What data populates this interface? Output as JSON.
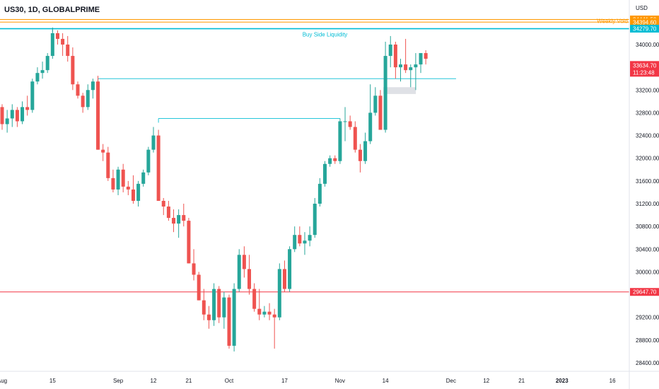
{
  "header": {
    "symbol": "US30, 1D, GLOBALPRIME"
  },
  "chart_data": {
    "type": "candlestick",
    "currency": "USD",
    "colors": {
      "up": "#26a69a",
      "down": "#ef5350",
      "background": "#ffffff",
      "axis_text": "#131722"
    },
    "y_axis": {
      "ylim": [
        28200,
        34800
      ],
      "ticks": [
        {
          "value": 34000,
          "label": "34000.00"
        },
        {
          "value": 33200,
          "label": "33200.00"
        },
        {
          "value": 32800,
          "label": "32800.00"
        },
        {
          "value": 32400,
          "label": "32400.00"
        },
        {
          "value": 32000,
          "label": "32000.00"
        },
        {
          "value": 31600,
          "label": "31600.00"
        },
        {
          "value": 31200,
          "label": "31200.00"
        },
        {
          "value": 30800,
          "label": "30800.00"
        },
        {
          "value": 30400,
          "label": "30400.00"
        },
        {
          "value": 30000,
          "label": "30000.00"
        },
        {
          "value": 29200,
          "label": "29200.00"
        },
        {
          "value": 28800,
          "label": "28800.00"
        },
        {
          "value": 28400,
          "label": "28400.00"
        }
      ]
    },
    "x_axis": {
      "ticks": [
        {
          "bar": 0,
          "label": "Aug"
        },
        {
          "bar": 10,
          "label": "15"
        },
        {
          "bar": 23,
          "label": "Sep"
        },
        {
          "bar": 30,
          "label": "12"
        },
        {
          "bar": 37,
          "label": "21"
        },
        {
          "bar": 45,
          "label": "Oct"
        },
        {
          "bar": 56,
          "label": "17"
        },
        {
          "bar": 67,
          "label": "Nov"
        },
        {
          "bar": 76,
          "label": "14"
        },
        {
          "bar": 89,
          "label": "Dec"
        },
        {
          "bar": 96,
          "label": "12"
        },
        {
          "bar": 103,
          "label": "21"
        },
        {
          "bar": 111,
          "label": "2023"
        },
        {
          "bar": 121,
          "label": "16"
        }
      ]
    },
    "candles": [
      [
        32900,
        32950,
        32500,
        32600
      ],
      [
        32600,
        32850,
        32450,
        32700
      ],
      [
        32700,
        32950,
        32550,
        32850
      ],
      [
        32850,
        32900,
        32550,
        32650
      ],
      [
        32650,
        33000,
        32600,
        32900
      ],
      [
        32900,
        33100,
        32750,
        32850
      ],
      [
        32850,
        33400,
        32800,
        33350
      ],
      [
        33350,
        33600,
        33300,
        33500
      ],
      [
        33500,
        33700,
        33400,
        33550
      ],
      [
        33550,
        33850,
        33500,
        33800
      ],
      [
        33800,
        34300,
        33750,
        34200
      ],
      [
        34200,
        34250,
        34000,
        34100
      ],
      [
        34100,
        34200,
        33800,
        34000
      ],
      [
        34000,
        34150,
        33700,
        33800
      ],
      [
        33800,
        33950,
        33200,
        33300
      ],
      [
        33300,
        33350,
        33050,
        33100
      ],
      [
        33100,
        33150,
        32800,
        32900
      ],
      [
        32900,
        33300,
        32850,
        33200
      ],
      [
        33200,
        33400,
        33050,
        33350
      ],
      [
        33350,
        33450,
        32150,
        32150
      ],
      [
        32150,
        32250,
        31950,
        32100
      ],
      [
        32100,
        32200,
        31600,
        31650
      ],
      [
        31650,
        31800,
        31400,
        31450
      ],
      [
        31450,
        31850,
        31350,
        31800
      ],
      [
        31800,
        31900,
        31400,
        31500
      ],
      [
        31500,
        31600,
        31350,
        31450
      ],
      [
        31450,
        31700,
        31200,
        31250
      ],
      [
        31250,
        31600,
        31150,
        31550
      ],
      [
        31550,
        31800,
        31500,
        31750
      ],
      [
        31750,
        32200,
        31700,
        32150
      ],
      [
        32150,
        32550,
        32100,
        32400
      ],
      [
        32400,
        32500,
        31250,
        31250
      ],
      [
        31250,
        31300,
        31000,
        31150
      ],
      [
        31150,
        31250,
        30900,
        30950
      ],
      [
        30950,
        31100,
        30700,
        30850
      ],
      [
        30850,
        31100,
        30600,
        31000
      ],
      [
        31000,
        31200,
        30800,
        30900
      ],
      [
        30900,
        30950,
        30150,
        30150
      ],
      [
        30150,
        30400,
        29850,
        29950
      ],
      [
        29950,
        30000,
        29500,
        29500
      ],
      [
        29500,
        29700,
        29150,
        29250
      ],
      [
        29250,
        29400,
        29000,
        29150
      ],
      [
        29150,
        29800,
        29050,
        29700
      ],
      [
        29700,
        29750,
        29100,
        29200
      ],
      [
        29200,
        29650,
        29000,
        29550
      ],
      [
        29550,
        29600,
        28650,
        28700
      ],
      [
        28700,
        29800,
        28600,
        29700
      ],
      [
        29700,
        30400,
        29650,
        30300
      ],
      [
        30300,
        30450,
        29900,
        30050
      ],
      [
        30050,
        30300,
        29600,
        29700
      ],
      [
        29700,
        29800,
        29300,
        29350
      ],
      [
        29350,
        29700,
        29150,
        29250
      ],
      [
        29250,
        29400,
        29200,
        29300
      ],
      [
        29300,
        29450,
        29150,
        29250
      ],
      [
        29250,
        29350,
        28650,
        29200
      ],
      [
        29200,
        30150,
        29150,
        30050
      ],
      [
        30050,
        30200,
        29650,
        29700
      ],
      [
        29700,
        30450,
        29650,
        30400
      ],
      [
        30400,
        30800,
        30350,
        30650
      ],
      [
        30650,
        30800,
        30450,
        30500
      ],
      [
        30500,
        30700,
        30300,
        30550
      ],
      [
        30550,
        30800,
        30450,
        30650
      ],
      [
        30650,
        31300,
        30600,
        31200
      ],
      [
        31200,
        31650,
        31150,
        31550
      ],
      [
        31550,
        31950,
        31500,
        31900
      ],
      [
        31900,
        32050,
        31850,
        32000
      ],
      [
        32000,
        32050,
        31900,
        31950
      ],
      [
        31950,
        32700,
        31900,
        32650
      ],
      [
        32650,
        32900,
        32300,
        32650
      ],
      [
        32650,
        32750,
        32500,
        32550
      ],
      [
        32550,
        32650,
        32100,
        32150
      ],
      [
        32150,
        32250,
        31750,
        31950
      ],
      [
        31950,
        32450,
        31900,
        32300
      ],
      [
        32300,
        33300,
        32250,
        32800
      ],
      [
        32800,
        33250,
        32750,
        33100
      ],
      [
        33100,
        33200,
        32500,
        32500
      ],
      [
        32500,
        34050,
        32450,
        33800
      ],
      [
        33800,
        34150,
        33600,
        34000
      ],
      [
        34000,
        34050,
        33400,
        33600
      ],
      [
        33600,
        33750,
        33350,
        33650
      ],
      [
        33650,
        34100,
        33500,
        33550
      ],
      [
        33550,
        33650,
        33250,
        33600
      ],
      [
        33600,
        33850,
        33200,
        33650
      ],
      [
        33650,
        33800,
        33500,
        33850
      ],
      [
        33850,
        33900,
        33650,
        33750
      ]
    ],
    "horizontal_levels": [
      {
        "name": "weekly-void-top",
        "price": 34441.5,
        "label": "34441.50",
        "color": "#ff9800",
        "tag_bg": "#ff9800",
        "tag_fg": "#ffffff"
      },
      {
        "name": "weekly-void-bottom",
        "price": 34394.6,
        "label": "34394.60",
        "color": "#ff9800",
        "tag_bg": "#ff9800",
        "tag_fg": "#ffffff"
      },
      {
        "name": "buy-side-liquidity",
        "price": 34279.7,
        "label": "34279.70",
        "color": "#00bcd4",
        "tag_bg": "#00bcd4",
        "tag_fg": "#ffffff"
      },
      {
        "name": "support-level",
        "price": 29647.7,
        "label": "29647.70",
        "color": "#f23645",
        "tag_bg": "#f23645",
        "tag_fg": "#ffffff"
      }
    ],
    "current_price": {
      "price": 33634.7,
      "label": "33634.70",
      "countdown": "11:23:48",
      "color": "#f23645"
    },
    "annotations": [
      {
        "text": "Weekly Void",
        "price": 34420,
        "color": "#ff9800"
      },
      {
        "text": "Buy Side Liquidity",
        "price": 34180,
        "bar": 64,
        "color": "#00bcd4"
      }
    ],
    "segments": [
      {
        "price": 33400,
        "bar_start": 19,
        "bar_end": 90,
        "color": "#26c6da"
      },
      {
        "price": 32700,
        "bar_start": 31,
        "bar_end": 67,
        "color": "#26c6da"
      },
      {
        "price": 34279.7,
        "bar_start": 10,
        "bar_end": 123,
        "color": "#00bcd4",
        "width": 2
      }
    ]
  }
}
